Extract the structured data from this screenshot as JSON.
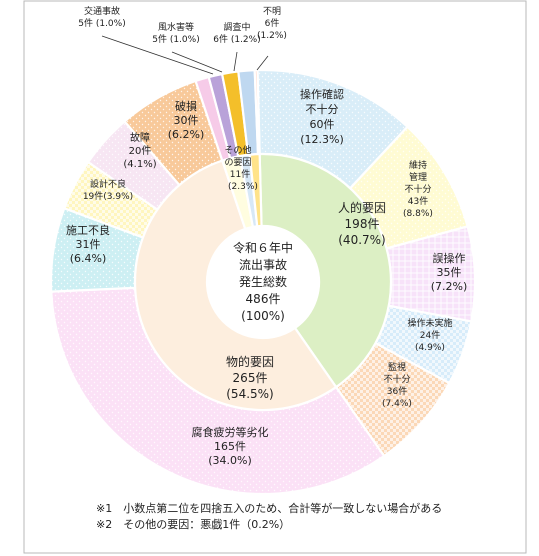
{
  "chart_data": {
    "type": "pie",
    "center": {
      "lines": [
        "令和６年中",
        "流出事故",
        "発生総数",
        "486件",
        "(100%)"
      ]
    },
    "inner": [
      {
        "name": "人的要因",
        "count": "198件",
        "pct": "(40.7%)",
        "value": 198,
        "color": "#dcefc4"
      },
      {
        "name": "物的要因",
        "count": "265件",
        "pct": "(54.5%)",
        "value": 265,
        "color": "#fdeede"
      },
      {
        "name": "その他の要因",
        "count": "11件",
        "pct": "(2.3%)",
        "value": 11,
        "color": "#fffde0",
        "label_lines": [
          "その他",
          "の要因",
          "11件",
          "(2.3%)"
        ]
      },
      {
        "name": "不明",
        "value": 6,
        "color": "#d7e8f7"
      },
      {
        "name": "調査中",
        "value": 6,
        "color": "#ffe38a"
      }
    ],
    "outer": [
      {
        "name": "操作確認不十分",
        "value": 60,
        "color": "#d9edf8",
        "pattern": "dots",
        "label_lines": [
          "操作確認",
          "不十分",
          "60件",
          "(12.3%)"
        ]
      },
      {
        "name": "維持管理不十分",
        "value": 43,
        "color": "#fffbd3",
        "pattern": "dots",
        "label_lines": [
          "維持",
          "管理",
          "不十分",
          "43件",
          "(8.8%)"
        ]
      },
      {
        "name": "誤操作",
        "value": 35,
        "color": "#f7e2f9",
        "pattern": "grid",
        "label_lines": [
          "誤操作",
          "35件",
          "(7.2%)"
        ]
      },
      {
        "name": "操作未実施",
        "value": 24,
        "color": "#d7ecfa",
        "pattern": "check",
        "label_lines": [
          "操作未実施",
          "24件",
          "(4.9%)"
        ]
      },
      {
        "name": "監視不十分",
        "value": 36,
        "color": "#fbd8b7",
        "pattern": "check",
        "label_lines": [
          "監視",
          "不十分",
          "36件",
          "(7.4%)"
        ]
      },
      {
        "name": "腐食疲労等劣化",
        "value": 165,
        "color": "#fbe1f6",
        "pattern": "dots",
        "label_lines": [
          "腐食疲労等劣化",
          "165件",
          "(34.0%)"
        ]
      },
      {
        "name": "施工不良",
        "value": 31,
        "color": "#cdeff3",
        "pattern": "dots",
        "label_lines": [
          "施工不良",
          "31件",
          "(6.4%)"
        ]
      },
      {
        "name": "設計不良",
        "value": 19,
        "color": "#fff6bf",
        "pattern": "check",
        "label_lines": [
          "設計不良",
          "19件(3.9%)"
        ]
      },
      {
        "name": "故障",
        "value": 20,
        "color": "#f7e6f3",
        "pattern": "dots",
        "label_lines": [
          "故障",
          "20件",
          "(4.1%)"
        ]
      },
      {
        "name": "破損",
        "value": 30,
        "color": "#f8c99a",
        "pattern": "dots",
        "label_lines": [
          "破損",
          "30件",
          "(6.2%)"
        ]
      },
      {
        "name": "交通事故",
        "value": 5,
        "color": "#f6cbe8",
        "label_lines": [
          "交通事故",
          "5件 (1.0%)"
        ]
      },
      {
        "name": "風水害等",
        "value": 5,
        "color": "#b9a2d9",
        "label_lines": [
          "風水害等",
          "5件 (1.0%)"
        ]
      },
      {
        "name": "調査中",
        "value": 6,
        "color": "#f4bf2a",
        "label_lines": [
          "調査中",
          "6件 (1.2%)"
        ]
      },
      {
        "name": "不明",
        "value": 6,
        "color": "#bfd8f0",
        "label_lines": [
          "不明",
          "6件",
          "(1.2%)"
        ]
      },
      {
        "name": "その他",
        "value": 1,
        "color": "#ffd0c0"
      }
    ],
    "notes": [
      "※1　小数点第二位を四捨五入のため、合計等が一致しない場合がある",
      "※2　その他の要因：悪戯1件（0.2%）"
    ]
  },
  "colors": {
    "frame": "#b9b9b9",
    "separator": "#ffffff",
    "text": "#222222"
  }
}
